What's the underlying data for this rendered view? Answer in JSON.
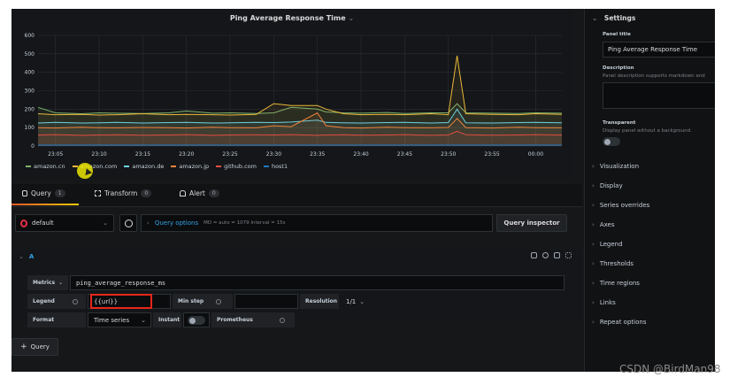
{
  "panel": {
    "title": "Ping Average Response Time",
    "title_caret": "⌄"
  },
  "chart_data": {
    "type": "line",
    "title": "Ping Average Response Time",
    "xlabel": "",
    "ylabel": "",
    "ylim": [
      0,
      600
    ],
    "y_ticks": [
      "0",
      "100",
      "200",
      "300",
      "400",
      "500",
      "600"
    ],
    "x_ticks": [
      "23:05",
      "23:10",
      "23:15",
      "23:20",
      "23:25",
      "23:30",
      "23:35",
      "23:40",
      "23:45",
      "23:50",
      "23:55",
      "00:00"
    ],
    "grid": true,
    "legend_placement": "bottom-left",
    "x": [
      "23:03",
      "23:05",
      "23:08",
      "23:10",
      "23:12",
      "23:15",
      "23:18",
      "23:20",
      "23:23",
      "23:25",
      "23:28",
      "23:30",
      "23:32",
      "23:35",
      "23:36",
      "23:38",
      "23:40",
      "23:43",
      "23:45",
      "23:48",
      "23:50",
      "23:51",
      "23:52",
      "23:55",
      "23:58",
      "00:00",
      "00:03"
    ],
    "series": [
      {
        "name": "amazon.cn",
        "color": "#7eb26d",
        "values": [
          210,
          180,
          175,
          180,
          178,
          176,
          180,
          190,
          178,
          180,
          176,
          180,
          210,
          200,
          185,
          180,
          178,
          182,
          176,
          180,
          180,
          230,
          180,
          178,
          176,
          180,
          178
        ]
      },
      {
        "name": "amazon.com",
        "color": "#eab839",
        "values": [
          175,
          170,
          172,
          168,
          170,
          175,
          170,
          172,
          170,
          168,
          172,
          230,
          220,
          220,
          200,
          175,
          170,
          172,
          170,
          175,
          170,
          490,
          175,
          172,
          170,
          175,
          172
        ]
      },
      {
        "name": "amazon.de",
        "color": "#6ed0e0",
        "values": [
          125,
          128,
          125,
          126,
          128,
          125,
          127,
          128,
          125,
          126,
          128,
          127,
          130,
          140,
          128,
          126,
          125,
          127,
          128,
          125,
          127,
          200,
          126,
          125,
          127,
          128,
          126
        ]
      },
      {
        "name": "amazon.jp",
        "color": "#ef843c",
        "values": [
          100,
          98,
          102,
          100,
          99,
          101,
          100,
          98,
          102,
          100,
          99,
          110,
          105,
          180,
          110,
          100,
          98,
          102,
          100,
          99,
          101,
          150,
          100,
          98,
          102,
          100,
          99
        ]
      },
      {
        "name": "github.com",
        "color": "#e24d42",
        "values": [
          60,
          62,
          58,
          60,
          61,
          59,
          60,
          62,
          58,
          60,
          61,
          60,
          62,
          58,
          60,
          61,
          59,
          60,
          62,
          58,
          60,
          80,
          61,
          59,
          60,
          62,
          60
        ]
      },
      {
        "name": "host1",
        "color": "#1f78c1",
        "values": [
          5,
          5,
          5,
          5,
          5,
          5,
          5,
          5,
          5,
          5,
          5,
          5,
          5,
          5,
          5,
          5,
          5,
          5,
          5,
          5,
          5,
          5,
          5,
          5,
          5,
          5,
          5
        ]
      }
    ]
  },
  "tabs": [
    {
      "label": "Query",
      "count": "1"
    },
    {
      "label": "Transform",
      "count": "0"
    },
    {
      "label": "Alert",
      "count": "0"
    }
  ],
  "query_bar": {
    "datasource": "default",
    "options_label": "Query options",
    "options_meta": "MD = auto = 1079    Interval = 15s",
    "inspector_label": "Query inspector"
  },
  "query": {
    "ref": "A",
    "metrics_label": "Metrics",
    "metrics_value": "ping_average_response_ms",
    "legend_label": "Legend",
    "legend_value": "{{url}}",
    "minstep_label": "Min step",
    "resolution_label": "Resolution",
    "resolution_value": "1/1",
    "format_label": "Format",
    "format_value": "Time series",
    "instant_label": "Instant",
    "prometheus_label": "Prometheus"
  },
  "add_query_label": "Query",
  "settings": {
    "header": "Settings",
    "panel_title_label": "Panel title",
    "panel_title_value": "Ping Average Response Time",
    "description_label": "Description",
    "description_help": "Panel description supports markdown and",
    "transparent_label": "Transparent",
    "transparent_help": "Display panel without a background.",
    "sections": [
      "Visualization",
      "Display",
      "Series overrides",
      "Axes",
      "Legend",
      "Thresholds",
      "Time regions",
      "Links",
      "Repeat options"
    ]
  },
  "watermark": "CSDN @BirdMan98"
}
